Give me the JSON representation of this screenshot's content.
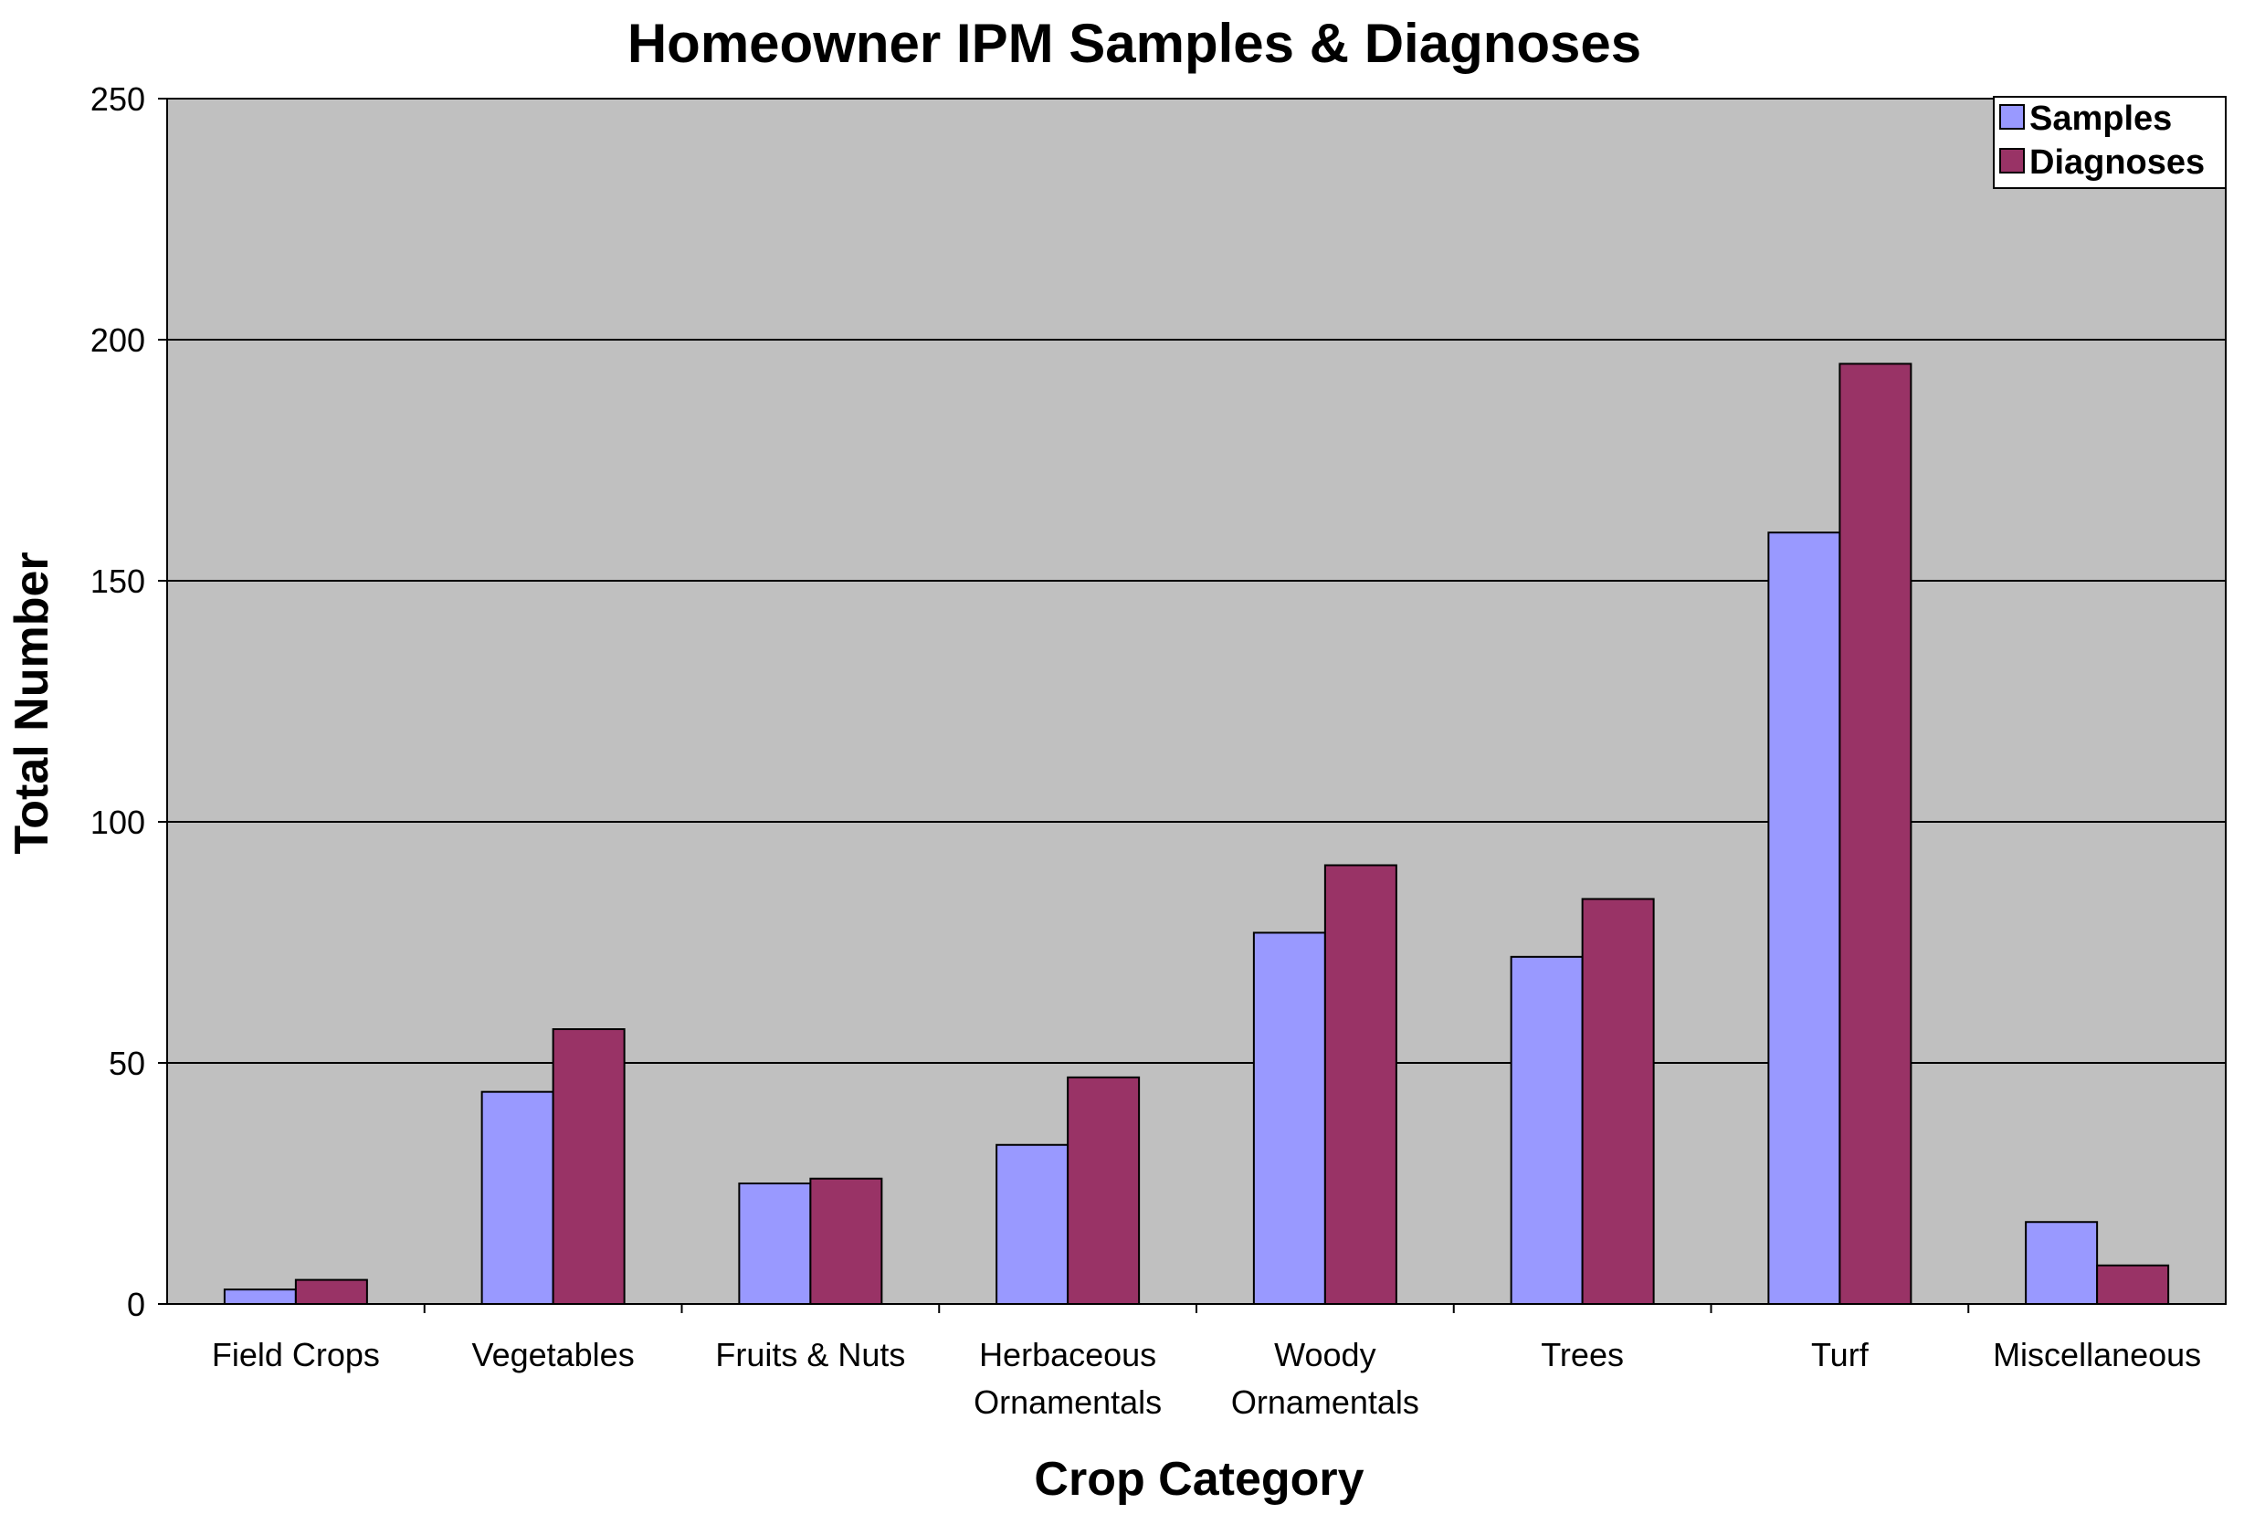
{
  "chart_data": {
    "type": "bar",
    "title": "Homeowner IPM Samples & Diagnoses",
    "xlabel": "Crop Category",
    "ylabel": "Total Number",
    "ylim": [
      0,
      250
    ],
    "yticks": [
      "0",
      "50",
      "100",
      "150",
      "200",
      "250"
    ],
    "grid": "horizontal",
    "legend_position": "top-right",
    "categories": [
      [
        "Field Crops"
      ],
      [
        "Vegetables"
      ],
      [
        "Fruits & Nuts"
      ],
      [
        "Herbaceous",
        "Ornamentals"
      ],
      [
        "Woody",
        "Ornamentals"
      ],
      [
        "Trees"
      ],
      [
        "Turf"
      ],
      [
        "Miscellaneous"
      ]
    ],
    "series": [
      {
        "name": "Samples",
        "color": "#9999FF",
        "values": [
          3,
          44,
          25,
          33,
          77,
          72,
          160,
          17
        ]
      },
      {
        "name": "Diagnoses",
        "color": "#993366",
        "values": [
          5,
          57,
          26,
          47,
          91,
          84,
          195,
          8
        ]
      }
    ],
    "plot_background": "#C0C0C0"
  }
}
